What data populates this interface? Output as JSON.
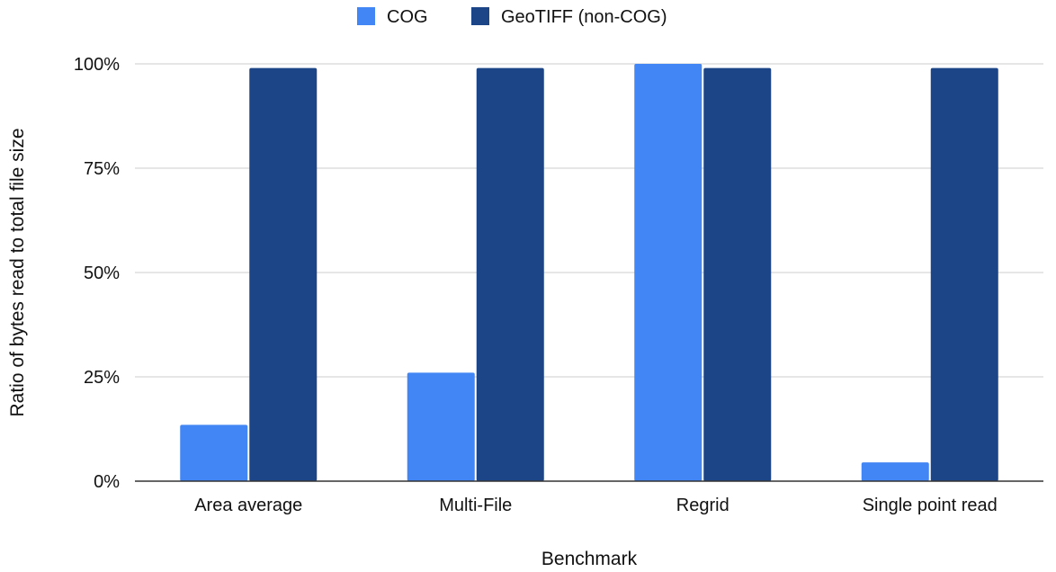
{
  "chart_data": {
    "type": "bar",
    "title": "",
    "xlabel": "Benchmark",
    "ylabel": "Ratio of bytes read to total file size",
    "categories": [
      "Area average",
      "Multi-File",
      "Regrid",
      "Single point read"
    ],
    "series": [
      {
        "name": "COG",
        "color": "#4285f4",
        "values": [
          0.135,
          0.26,
          1.0,
          0.045
        ]
      },
      {
        "name": "GeoTIFF (non-COG)",
        "color": "#1c4587",
        "values": [
          0.99,
          0.99,
          0.99,
          0.99
        ]
      }
    ],
    "ylim": [
      0,
      1
    ],
    "yticks": [
      0,
      0.25,
      0.5,
      0.75,
      1.0
    ],
    "ytick_labels": [
      "0%",
      "25%",
      "50%",
      "75%",
      "100%"
    ],
    "grid": true,
    "legend_position": "top"
  }
}
